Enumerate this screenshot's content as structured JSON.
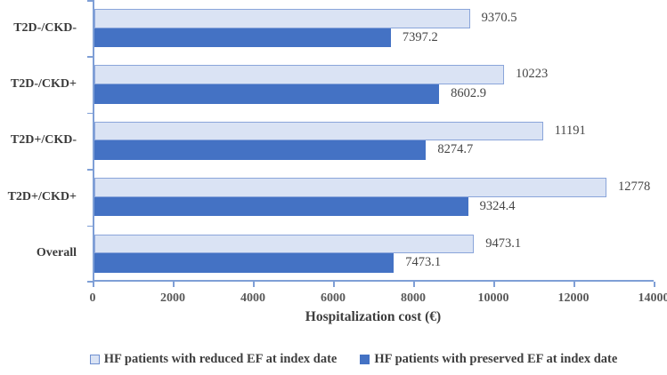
{
  "chart_data": {
    "type": "bar",
    "orientation": "horizontal",
    "title": "",
    "xlabel": "Hospitalization cost (€)",
    "ylabel": "",
    "xlim": [
      0,
      14000
    ],
    "x_ticks": [
      0,
      2000,
      4000,
      6000,
      8000,
      10000,
      12000,
      14000
    ],
    "x_tick_labels": [
      "0",
      "2000",
      "4000",
      "6000",
      "8000",
      "10000",
      "12000",
      "14000"
    ],
    "grid": false,
    "legend_position": "bottom",
    "categories": [
      "T2D-/CKD-",
      "T2D-/CKD+",
      "T2D+/CKD-",
      "T2D+/CKD+",
      "Overall"
    ],
    "series": [
      {
        "name": "HF patients with reduced EF at index date",
        "values": [
          9370.5,
          10223,
          11191,
          12778,
          9473.1
        ],
        "labels": [
          "9370.5",
          "10223",
          "11191",
          "12778",
          "9473.1"
        ],
        "fill": "#dae3f4",
        "border": "#8aa5da"
      },
      {
        "name": "HF patients with preserved EF at index date",
        "values": [
          7397.2,
          8602.9,
          8274.7,
          9324.4,
          7473.1
        ],
        "labels": [
          "7397.2",
          "8602.9",
          "8274.7",
          "9324.4",
          "7473.1"
        ],
        "fill": "#4472c4",
        "border": "#4472c4"
      }
    ]
  },
  "colors": {
    "axis_line": "#7f9fd6",
    "tick_label": "#595959",
    "category_label": "#3a3a3a",
    "data_label": "#454545",
    "axis_title": "#3d3d3d",
    "legend_text": "#3f3f3f",
    "background": "#ffffff"
  }
}
